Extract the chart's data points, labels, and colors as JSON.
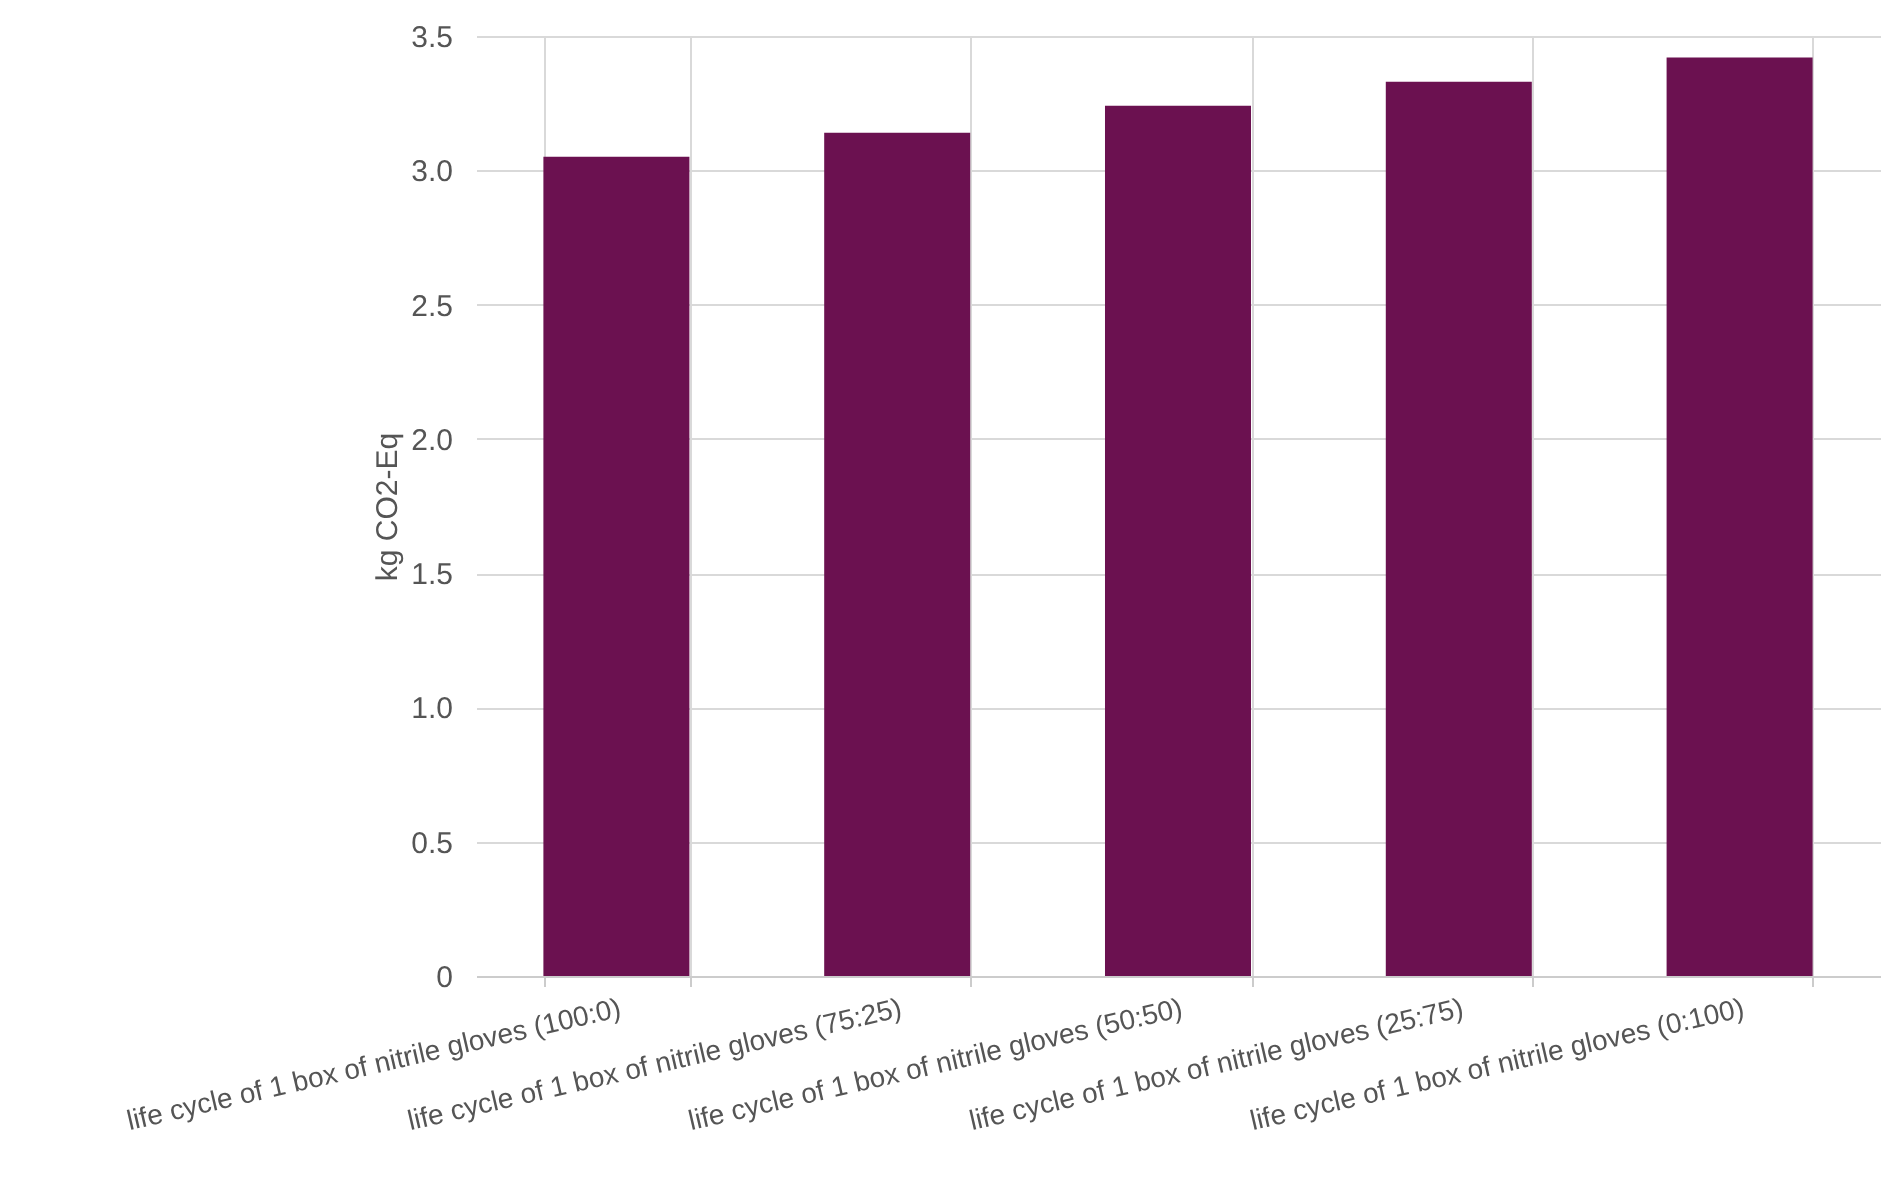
{
  "chart_data": {
    "type": "bar",
    "categories": [
      "life cycle of 1 box of nitrile gloves (100:0)",
      "life cycle of 1 box of nitrile gloves (75:25)",
      "life cycle of 1 box of nitrile gloves (50:50)",
      "life cycle of 1 box of nitrile gloves (25:75)",
      "life cycle of 1 box of nitrile gloves (0:100)"
    ],
    "values": [
      3.05,
      3.14,
      3.24,
      3.33,
      3.42
    ],
    "color": "#6b1150",
    "ylabel": "kg CO2-Eq",
    "ylim": [
      0,
      3.5
    ],
    "yticks": [
      0,
      0.5,
      {
        "value": 1,
        "label": "1.0"
      },
      1.5,
      {
        "value": 2,
        "label": "2.0"
      },
      2.5,
      {
        "value": 3,
        "label": "3.0"
      },
      3.5
    ],
    "grid": true
  }
}
